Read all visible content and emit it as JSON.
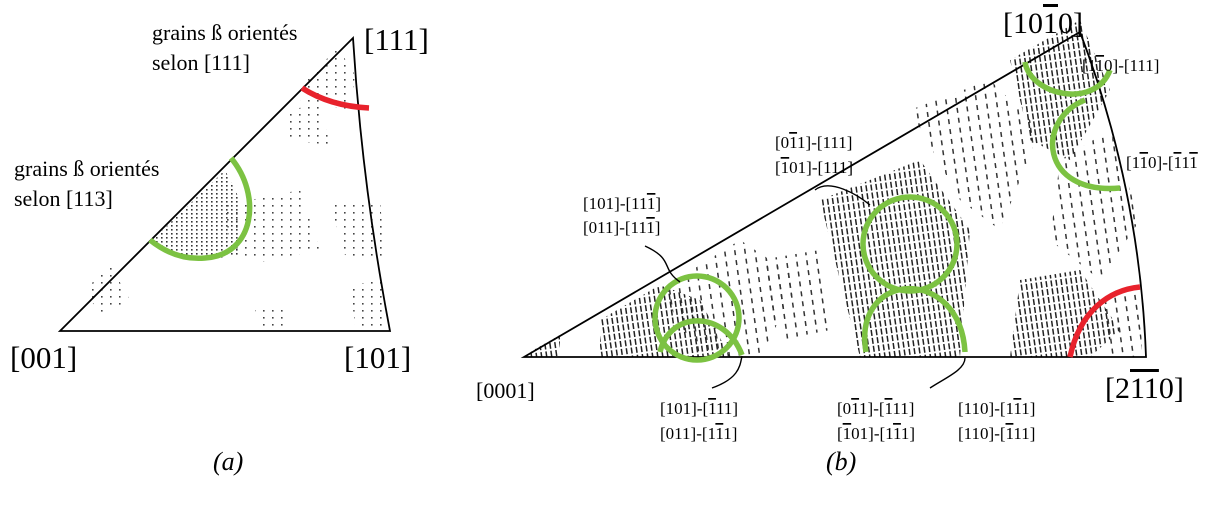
{
  "colors": {
    "green": "#7cc242",
    "red": "#e8222c",
    "ink": "#000000"
  },
  "panel_a": {
    "corner_111": "[111]",
    "corner_001": "[001]",
    "corner_101": "[101]",
    "annot_111_line1": "grains ß orientés",
    "annot_111_line2": "selon [111]",
    "annot_113_line1": "grains ß orientés",
    "annot_113_line2": "selon [113]",
    "caption": "(a)"
  },
  "panel_b": {
    "corner_top": "[10",
    "corner_top_bar": "1",
    "corner_top_end": "0]",
    "corner_origin": "[0001]",
    "corner_right": "[2",
    "corner_right_bar": "11",
    "corner_right_end": "0]",
    "caption": "(b)"
  }
}
